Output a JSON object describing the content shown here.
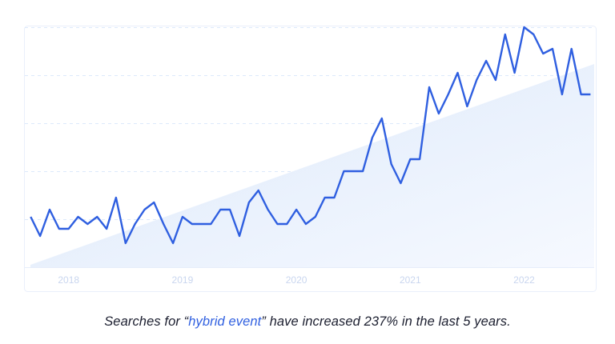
{
  "chart_data": {
    "type": "line",
    "title": "",
    "xlabel": "",
    "ylabel": "",
    "ylim": [
      0,
      100
    ],
    "grid": true,
    "line_color": "#2f5fe0",
    "trend_fill_color": "#dbe8fa",
    "x": [
      "2017-09",
      "2017-10",
      "2017-11",
      "2017-12",
      "2018-01",
      "2018-02",
      "2018-03",
      "2018-04",
      "2018-05",
      "2018-06",
      "2018-07",
      "2018-08",
      "2018-09",
      "2018-10",
      "2018-11",
      "2018-12",
      "2019-01",
      "2019-02",
      "2019-03",
      "2019-04",
      "2019-05",
      "2019-06",
      "2019-07",
      "2019-08",
      "2019-09",
      "2019-10",
      "2019-11",
      "2019-12",
      "2020-01",
      "2020-02",
      "2020-03",
      "2020-04",
      "2020-05",
      "2020-06",
      "2020-07",
      "2020-08",
      "2020-09",
      "2020-10",
      "2020-11",
      "2020-12",
      "2021-01",
      "2021-02",
      "2021-03",
      "2021-04",
      "2021-05",
      "2021-06",
      "2021-07",
      "2021-08",
      "2021-09",
      "2021-10",
      "2021-11",
      "2021-12",
      "2022-01",
      "2022-02",
      "2022-03",
      "2022-04",
      "2022-05",
      "2022-06",
      "2022-07",
      "2022-08"
    ],
    "values": [
      21,
      13,
      24,
      16,
      16,
      21,
      18,
      21,
      16,
      29,
      10,
      18,
      24,
      27,
      18,
      10,
      21,
      18,
      18,
      18,
      24,
      24,
      13,
      27,
      32,
      24,
      18,
      18,
      24,
      18,
      21,
      29,
      29,
      40,
      40,
      40,
      54,
      62,
      43,
      35,
      45,
      45,
      75,
      64,
      72,
      81,
      67,
      78,
      86,
      78,
      97,
      81,
      100,
      97,
      89,
      91,
      72,
      91,
      72,
      72
    ],
    "x_tick_labels": [
      {
        "label": "2018",
        "at": "2018-01"
      },
      {
        "label": "2019",
        "at": "2019-01"
      },
      {
        "label": "2020",
        "at": "2020-01"
      },
      {
        "label": "2021",
        "at": "2021-01"
      },
      {
        "label": "2022",
        "at": "2022-01"
      }
    ]
  },
  "caption": {
    "before": "Searches for “",
    "keyword": "hybrid event",
    "after": "” have increased 237% in the last 5 years."
  }
}
